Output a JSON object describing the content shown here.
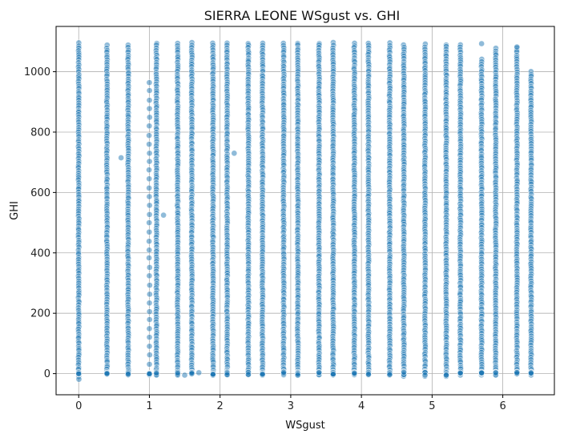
{
  "chart_data": {
    "type": "scatter",
    "title": "SIERRA LEONE WSgust vs. GHI",
    "xlabel": "WSgust",
    "ylabel": "GHI",
    "xlim": [
      -0.32,
      6.73
    ],
    "ylim": [
      -70,
      1150
    ],
    "grid": true,
    "marker_color": "#1f77b4",
    "marker_edge": "#ffffff",
    "marker_alpha": 0.5,
    "x_ticks": [
      {
        "value": 0,
        "label": "0"
      },
      {
        "value": 1,
        "label": "1"
      },
      {
        "value": 2,
        "label": "2"
      },
      {
        "value": 3,
        "label": "3"
      },
      {
        "value": 4,
        "label": "4"
      },
      {
        "value": 5,
        "label": "5"
      },
      {
        "value": 6,
        "label": "6"
      }
    ],
    "y_ticks": [
      {
        "value": 0,
        "label": "0"
      },
      {
        "value": 200,
        "label": "200"
      },
      {
        "value": 400,
        "label": "400"
      },
      {
        "value": 600,
        "label": "600"
      },
      {
        "value": 800,
        "label": "800"
      },
      {
        "value": 1000,
        "label": "1000"
      }
    ],
    "columns": [
      {
        "x": 0.0,
        "y_min": -20,
        "y_max": 1095,
        "dense": true
      },
      {
        "x": 0.4,
        "y_min": -10,
        "y_max": 1088,
        "dense": true
      },
      {
        "x": 0.7,
        "y_min": -10,
        "y_max": 1088,
        "dense": true
      },
      {
        "x": 1.0,
        "y_min": -10,
        "y_max": 965,
        "dense": false
      },
      {
        "x": 1.1,
        "y_min": -10,
        "y_max": 1095,
        "dense": true
      },
      {
        "x": 1.4,
        "y_min": -10,
        "y_max": 1095,
        "dense": true
      },
      {
        "x": 1.6,
        "y_min": -10,
        "y_max": 1095,
        "dense": true
      },
      {
        "x": 1.9,
        "y_min": -10,
        "y_max": 1095,
        "dense": true
      },
      {
        "x": 2.1,
        "y_min": -10,
        "y_max": 1095,
        "dense": true
      },
      {
        "x": 2.4,
        "y_min": -10,
        "y_max": 1095,
        "dense": true
      },
      {
        "x": 2.6,
        "y_min": -10,
        "y_max": 1095,
        "dense": true
      },
      {
        "x": 2.9,
        "y_min": -10,
        "y_max": 1095,
        "dense": true
      },
      {
        "x": 3.1,
        "y_min": -10,
        "y_max": 1095,
        "dense": true
      },
      {
        "x": 3.4,
        "y_min": -10,
        "y_max": 1095,
        "dense": true
      },
      {
        "x": 3.6,
        "y_min": -10,
        "y_max": 1095,
        "dense": true
      },
      {
        "x": 3.9,
        "y_min": -10,
        "y_max": 1095,
        "dense": true
      },
      {
        "x": 4.1,
        "y_min": -10,
        "y_max": 1095,
        "dense": true
      },
      {
        "x": 4.4,
        "y_min": -10,
        "y_max": 1095,
        "dense": true
      },
      {
        "x": 4.6,
        "y_min": -10,
        "y_max": 1090,
        "dense": true
      },
      {
        "x": 4.9,
        "y_min": -10,
        "y_max": 1090,
        "dense": true
      },
      {
        "x": 5.2,
        "y_min": -10,
        "y_max": 1090,
        "dense": true
      },
      {
        "x": 5.4,
        "y_min": -10,
        "y_max": 1088,
        "dense": true
      },
      {
        "x": 5.7,
        "y_min": -10,
        "y_max": 1040,
        "dense": true
      },
      {
        "x": 5.9,
        "y_min": -10,
        "y_max": 1078,
        "dense": true
      },
      {
        "x": 6.2,
        "y_min": -10,
        "y_max": 1080,
        "dense": true
      },
      {
        "x": 6.4,
        "y_min": -10,
        "y_max": 1000,
        "dense": true
      }
    ],
    "outliers": [
      {
        "x": 0.6,
        "y": 715
      },
      {
        "x": 1.2,
        "y": 525
      },
      {
        "x": 1.7,
        "y": 3
      },
      {
        "x": 1.5,
        "y": -5
      },
      {
        "x": 2.2,
        "y": 730
      },
      {
        "x": 5.7,
        "y": 1093
      },
      {
        "x": 6.2,
        "y": 1082
      }
    ]
  }
}
